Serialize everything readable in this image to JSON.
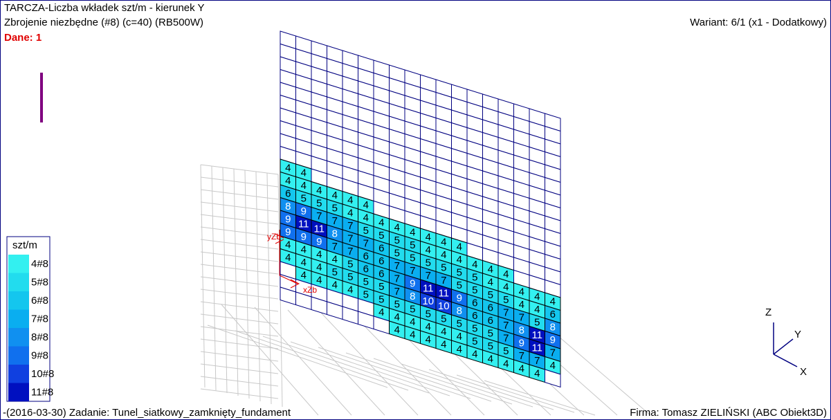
{
  "header": {
    "title": "TARCZA-Liczba wkładek szt/m - kierunek Y",
    "subtitle": "Zbrojenie niezbędne (#8) (c=40) (RB500W)",
    "data_label": "Dane: 1",
    "variant": "Wariant: 6/1 (x1 - Dodatkowy)"
  },
  "legend": {
    "title": "szt/m",
    "items": [
      {
        "label": "4#8",
        "value": 4,
        "color": "#33f0f0"
      },
      {
        "label": "5#8",
        "value": 5,
        "color": "#22dcee"
      },
      {
        "label": "6#8",
        "value": 6,
        "color": "#14c6ee"
      },
      {
        "label": "7#8",
        "value": 7,
        "color": "#0aaef0"
      },
      {
        "label": "8#8",
        "value": 8,
        "color": "#1090f0"
      },
      {
        "label": "9#8",
        "value": 9,
        "color": "#1070ee"
      },
      {
        "label": "10#8",
        "value": 10,
        "color": "#1040e0"
      },
      {
        "label": "11#8",
        "value": 11,
        "color": "#0010c0"
      }
    ]
  },
  "mesh": {
    "columns": [
      [
        4,
        4,
        6,
        8,
        9,
        9,
        4,
        4,
        null,
        null,
        null
      ],
      [
        4,
        4,
        5,
        9,
        11,
        9,
        4,
        4,
        4,
        null,
        null
      ],
      [
        null,
        4,
        5,
        7,
        11,
        9,
        4,
        4,
        4,
        null,
        null
      ],
      [
        null,
        4,
        5,
        7,
        8,
        7,
        4,
        5,
        4,
        null,
        null
      ],
      [
        null,
        4,
        4,
        7,
        7,
        7,
        5,
        5,
        4,
        null,
        null
      ],
      [
        null,
        4,
        4,
        5,
        7,
        6,
        6,
        5,
        5,
        null,
        null
      ],
      [
        null,
        null,
        4,
        5,
        6,
        6,
        6,
        5,
        5,
        4,
        null
      ],
      [
        null,
        null,
        4,
        5,
        5,
        7,
        7,
        7,
        5,
        4,
        4
      ],
      [
        null,
        null,
        4,
        5,
        5,
        7,
        9,
        8,
        5,
        4,
        4
      ],
      [
        null,
        null,
        4,
        4,
        5,
        7,
        11,
        10,
        5,
        4,
        4
      ],
      [
        null,
        null,
        4,
        4,
        5,
        7,
        11,
        10,
        5,
        4,
        4
      ],
      [
        null,
        null,
        4,
        4,
        5,
        5,
        9,
        8,
        5,
        4,
        4
      ],
      [
        null,
        null,
        null,
        4,
        5,
        5,
        6,
        6,
        5,
        5,
        4
      ],
      [
        null,
        null,
        null,
        4,
        4,
        5,
        6,
        6,
        5,
        5,
        4
      ],
      [
        null,
        null,
        null,
        4,
        4,
        5,
        7,
        7,
        7,
        5,
        4
      ],
      [
        null,
        null,
        null,
        null,
        4,
        4,
        7,
        8,
        9,
        7,
        4
      ],
      [
        null,
        null,
        null,
        null,
        4,
        4,
        5,
        11,
        11,
        7,
        4
      ],
      [
        null,
        null,
        null,
        null,
        4,
        6,
        8,
        9,
        7,
        4,
        null
      ]
    ]
  },
  "axes": {
    "z": "Z",
    "y": "Y",
    "x": "X"
  },
  "supports": [
    "yZb",
    "xZb"
  ],
  "footer": {
    "task": "-(2016-03-30) Zadanie: Tunel_siatkowy_zamknięty_fundament",
    "company": "Firma: Tomasz ZIELIŃSKI (ABC Obiekt3D)"
  }
}
